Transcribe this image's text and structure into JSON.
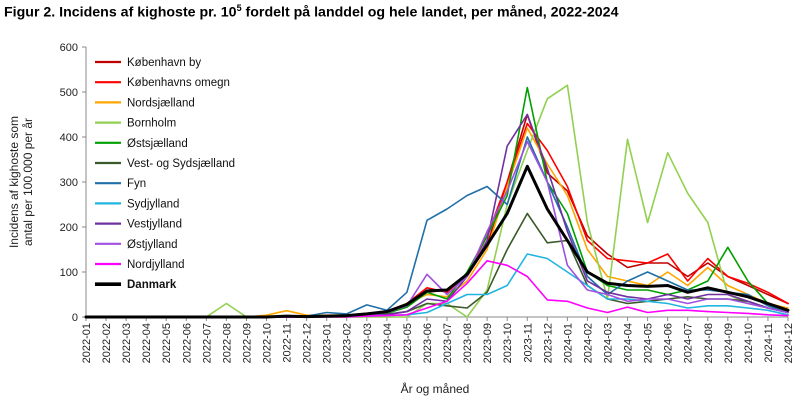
{
  "title": {
    "prefix": "Figur 2. Incidens af kighoste pr. 10",
    "sup": "5",
    "suffix": " fordelt på landdel og hele landet, per måned, 2022-2024"
  },
  "chart_data": {
    "type": "line",
    "title": "Figur 2. Incidens af kighoste pr. 10⁵ fordelt på landdel og hele landet, per måned, 2022-2024",
    "xlabel": "År og måned",
    "ylabel_lines": [
      "Incidens af kighoste som",
      "antal per 100.000 per år"
    ],
    "ylim": [
      0,
      600
    ],
    "yticks": [
      0,
      100,
      200,
      300,
      400,
      500,
      600
    ],
    "legend_position": "top-left",
    "grid": false,
    "x": [
      "2022-01",
      "2022-02",
      "2022-03",
      "2022-04",
      "2022-05",
      "2022-06",
      "2022-07",
      "2022-08",
      "2022-09",
      "2022-10",
      "2022-11",
      "2022-12",
      "2023-01",
      "2023-02",
      "2023-03",
      "2023-04",
      "2023-05",
      "2023-06",
      "2023-07",
      "2023-08",
      "2023-09",
      "2023-10",
      "2023-11",
      "2023-12",
      "2024-01",
      "2024-02",
      "2024-03",
      "2024-04",
      "2024-05",
      "2024-06",
      "2024-07",
      "2024-08",
      "2024-09",
      "2024-10",
      "2024-11",
      "2024-12"
    ],
    "series": [
      {
        "name": "København by",
        "color": "#c00000",
        "width": 1.6,
        "values": [
          0,
          0,
          0,
          0,
          0,
          0,
          0,
          0,
          0,
          0,
          2,
          0,
          3,
          3,
          6,
          12,
          22,
          55,
          60,
          90,
          160,
          300,
          450,
          320,
          280,
          180,
          140,
          110,
          120,
          120,
          90,
          120,
          90,
          70,
          50,
          30
        ]
      },
      {
        "name": "Københavns omegn",
        "color": "#ff0000",
        "width": 1.6,
        "values": [
          0,
          0,
          0,
          0,
          0,
          0,
          0,
          0,
          0,
          0,
          2,
          0,
          2,
          3,
          5,
          12,
          30,
          65,
          55,
          95,
          180,
          300,
          430,
          370,
          290,
          170,
          130,
          125,
          120,
          140,
          80,
          130,
          90,
          75,
          55,
          30
        ]
      },
      {
        "name": "Nordsjælland",
        "color": "#ffa500",
        "width": 1.6,
        "values": [
          0,
          0,
          0,
          0,
          0,
          0,
          0,
          0,
          0,
          4,
          14,
          4,
          4,
          4,
          8,
          10,
          30,
          50,
          45,
          80,
          150,
          290,
          420,
          340,
          270,
          150,
          90,
          80,
          70,
          100,
          70,
          110,
          70,
          50,
          30,
          20
        ]
      },
      {
        "name": "Bornholm",
        "color": "#92d050",
        "width": 1.6,
        "values": [
          0,
          0,
          0,
          0,
          0,
          0,
          0,
          30,
          0,
          0,
          0,
          0,
          0,
          0,
          0,
          0,
          0,
          30,
          30,
          0,
          60,
          250,
          370,
          485,
          515,
          210,
          40,
          395,
          210,
          365,
          275,
          210,
          50,
          30,
          20,
          10
        ]
      },
      {
        "name": "Østsjælland",
        "color": "#00a000",
        "width": 1.6,
        "values": [
          0,
          0,
          0,
          0,
          0,
          0,
          0,
          0,
          0,
          0,
          0,
          0,
          0,
          0,
          2,
          8,
          22,
          55,
          40,
          100,
          180,
          270,
          510,
          300,
          230,
          100,
          70,
          60,
          60,
          50,
          60,
          80,
          155,
          80,
          30,
          15
        ]
      },
      {
        "name": "Vest- og Sydsjælland",
        "color": "#3b5a2a",
        "width": 1.6,
        "values": [
          0,
          0,
          0,
          0,
          0,
          0,
          0,
          0,
          0,
          0,
          0,
          0,
          2,
          2,
          4,
          6,
          12,
          30,
          25,
          20,
          55,
          150,
          230,
          165,
          170,
          70,
          40,
          30,
          35,
          40,
          45,
          40,
          40,
          35,
          20,
          10
        ]
      },
      {
        "name": "Fyn",
        "color": "#1f6fa8",
        "width": 1.6,
        "values": [
          0,
          0,
          0,
          0,
          0,
          0,
          0,
          0,
          0,
          0,
          2,
          2,
          10,
          7,
          27,
          15,
          55,
          215,
          240,
          270,
          290,
          250,
          400,
          300,
          200,
          90,
          50,
          80,
          100,
          80,
          60,
          60,
          55,
          50,
          25,
          10
        ]
      },
      {
        "name": "Sydjylland",
        "color": "#21b5e0",
        "width": 1.6,
        "values": [
          0,
          0,
          0,
          0,
          0,
          0,
          0,
          0,
          0,
          0,
          0,
          0,
          0,
          2,
          2,
          3,
          5,
          10,
          30,
          50,
          50,
          70,
          140,
          130,
          100,
          70,
          40,
          40,
          35,
          30,
          20,
          25,
          25,
          20,
          15,
          5
        ]
      },
      {
        "name": "Vestjylland",
        "color": "#7030a0",
        "width": 1.6,
        "values": [
          0,
          0,
          0,
          0,
          0,
          0,
          0,
          0,
          0,
          0,
          0,
          0,
          2,
          2,
          4,
          5,
          12,
          40,
          35,
          90,
          170,
          380,
          450,
          330,
          190,
          80,
          55,
          45,
          40,
          50,
          40,
          50,
          50,
          35,
          20,
          10
        ]
      },
      {
        "name": "Østjylland",
        "color": "#a050e0",
        "width": 1.6,
        "values": [
          0,
          0,
          0,
          0,
          0,
          0,
          0,
          0,
          0,
          0,
          0,
          0,
          2,
          2,
          5,
          10,
          25,
          95,
          50,
          90,
          190,
          280,
          390,
          300,
          115,
          60,
          50,
          35,
          40,
          40,
          30,
          40,
          40,
          30,
          20,
          10
        ]
      },
      {
        "name": "Nordjylland",
        "color": "#ff00ff",
        "width": 1.6,
        "values": [
          0,
          0,
          0,
          0,
          0,
          0,
          0,
          0,
          0,
          0,
          0,
          0,
          0,
          0,
          2,
          3,
          5,
          20,
          35,
          75,
          125,
          115,
          90,
          38,
          35,
          20,
          10,
          22,
          10,
          15,
          15,
          12,
          10,
          8,
          5,
          3
        ]
      },
      {
        "name": "Danmark",
        "color": "#000000",
        "width": 3,
        "values": [
          0,
          0,
          0,
          0,
          0,
          0,
          0,
          0,
          0,
          0,
          2,
          1,
          2,
          3,
          7,
          12,
          28,
          58,
          60,
          95,
          160,
          230,
          335,
          240,
          170,
          100,
          75,
          70,
          68,
          70,
          55,
          65,
          55,
          45,
          30,
          15
        ]
      }
    ]
  }
}
